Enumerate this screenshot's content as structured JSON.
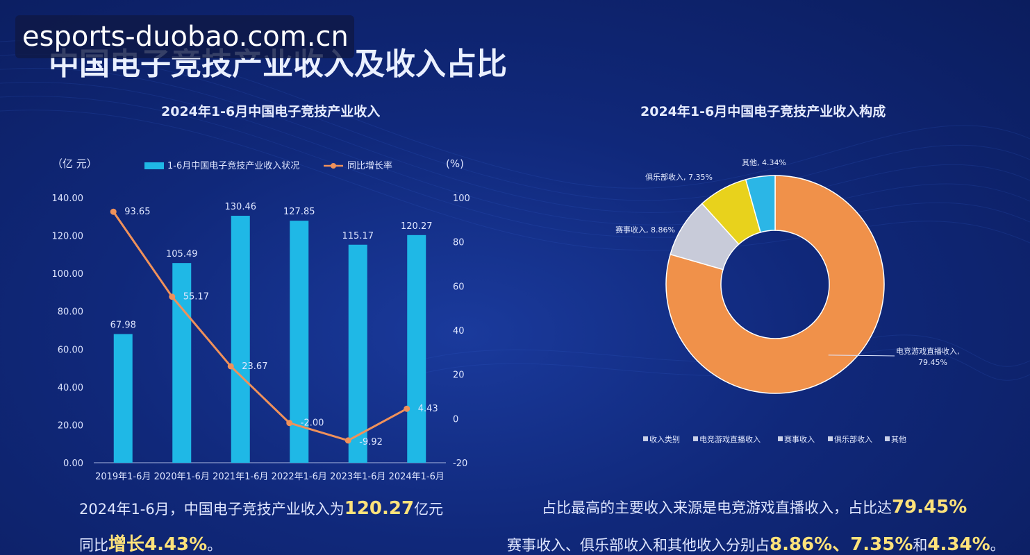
{
  "watermark": "esports-duobao.com.cn",
  "page_title": "中国电子竞技产业收入及收入占比",
  "summary_left": {
    "line1_prefix": "2024年1-6月，中国电子竞技产业收入为",
    "line1_value": "120.27",
    "line1_suffix": "亿元",
    "line2_prefix": "同比",
    "line2_value": "增长4.43%",
    "line2_suffix": "。"
  },
  "summary_right": {
    "line1_prefix": "占比最高的主要收入来源是电竞游戏直播收入，占比达",
    "line1_value": "79.45%",
    "line2_prefix": "赛事收入、俱乐部收入和其他收入分别占",
    "line2_v1": "8.86%",
    "line2_sep1": "、",
    "line2_v2": "7.35%",
    "line2_sep2": "和",
    "line2_v3": "4.34%",
    "line2_suffix": "。"
  },
  "colors": {
    "bar": "#1fb8e6",
    "line": "#f0915a",
    "pie": [
      "#f0914a",
      "#c8cbd9",
      "#e8d21c",
      "#2bb6e6"
    ]
  },
  "chart_data": [
    {
      "type": "bar",
      "title": "2024年1-6月中国电子竞技产业收入",
      "categories": [
        "2019年1-6月",
        "2020年1-6月",
        "2021年1-6月",
        "2022年1-6月",
        "2023年1-6月",
        "2024年1-6月"
      ],
      "y_unit_left": "（亿 元）",
      "y_unit_right": "(%)",
      "ylim": [
        0,
        140
      ],
      "yticks": [
        "0.00",
        "20.00",
        "40.00",
        "60.00",
        "80.00",
        "100.00",
        "120.00",
        "140.00"
      ],
      "y2lim": [
        -20,
        100
      ],
      "y2ticks": [
        "-20",
        "0",
        "20",
        "40",
        "60",
        "80",
        "100"
      ],
      "legend_position": "top",
      "series": [
        {
          "name": "1-6月中国电子竞技产业收入状况",
          "type": "bar",
          "values": [
            67.98,
            105.49,
            130.46,
            127.85,
            115.17,
            120.27
          ],
          "labels": [
            "67.98",
            "105.49",
            "130.46",
            "127.85",
            "115.17",
            "120.27"
          ]
        },
        {
          "name": "同比增长率",
          "type": "line",
          "axis": "right",
          "values": [
            93.65,
            55.17,
            23.67,
            -2.0,
            -9.92,
            4.43
          ],
          "labels": [
            "93.65",
            "55.17",
            "23.67",
            "-2.00",
            "-9.92",
            "4.43"
          ]
        }
      ],
      "grid": false
    },
    {
      "type": "pie",
      "title": "2024年1-6月中国电子竞技产业收入构成",
      "donut": true,
      "categories": [
        "电竞游戏直播收入",
        "赛事收入",
        "俱乐部收入",
        "其他"
      ],
      "values": [
        79.45,
        8.86,
        7.35,
        4.34
      ],
      "labels": [
        "电竞游戏直播收入,",
        "赛事收入, 8.86%",
        "俱乐部收入, 7.35%",
        "其他, 4.34%"
      ],
      "label_second_line": "79.45%",
      "legend_title": "收入类别",
      "legend_position": "bottom"
    }
  ]
}
